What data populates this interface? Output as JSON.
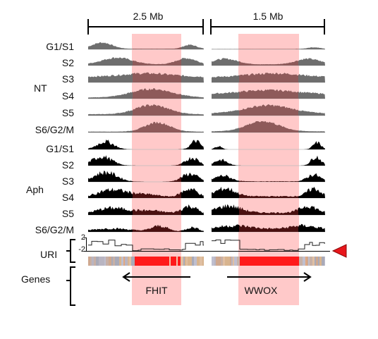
{
  "scale": {
    "left": "2.5 Mb",
    "right": "1.5 Mb"
  },
  "groups": {
    "nt": "NT",
    "aph": "Aph",
    "uri": "URI",
    "genes": "Genes"
  },
  "phases": [
    "G1/S1",
    "S2",
    "S3",
    "S4",
    "S5",
    "S6/G2/M"
  ],
  "uri_ticks": {
    "top": "2",
    "bottom": "-2"
  },
  "genes": {
    "left": "FHIT",
    "right": "WWOX"
  },
  "colors": {
    "nt_track": "#6e6e6e",
    "nt_highlight": "#8e5a5a",
    "aph_track": "#000000",
    "aph_highlight": "#4a1010",
    "highlight_band": "#ffc9c9",
    "gene_red": "#ff1a1a",
    "marker": "#e8161b"
  },
  "icons": {
    "marker": "red-triangle-marker-icon"
  }
}
